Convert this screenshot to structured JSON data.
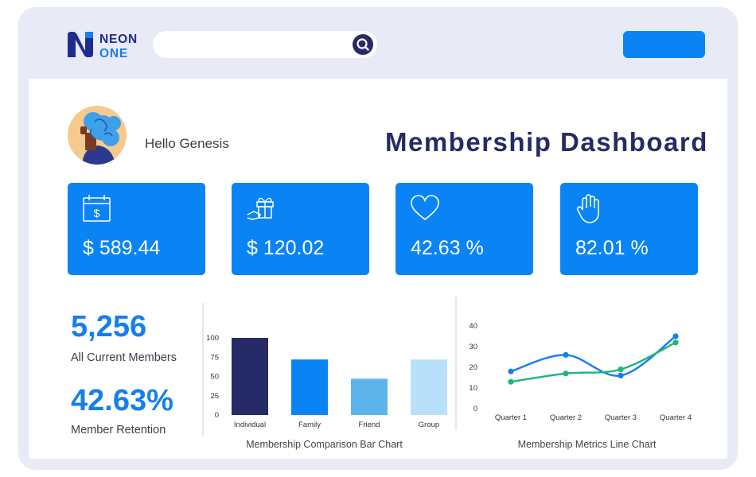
{
  "header": {
    "logo_line1": "NEON",
    "logo_line2": "ONE",
    "search_placeholder": "",
    "search_icon": "search-icon",
    "action_button_label": ""
  },
  "user": {
    "greeting": "Hello Genesis"
  },
  "page": {
    "title": "Membership Dashboard"
  },
  "cards": [
    {
      "icon": "calendar-dollar-icon",
      "value": "$ 589.44"
    },
    {
      "icon": "gift-hand-icon",
      "value": "$ 120.02"
    },
    {
      "icon": "heart-icon",
      "value": "42.63 %"
    },
    {
      "icon": "hand-icon",
      "value": "82.01 %"
    }
  ],
  "stats": {
    "members_value": "5,256",
    "members_label": "All Current Members",
    "retention_value": "42.63%",
    "retention_label": "Member Retention"
  },
  "colors": {
    "accent": "#0A84F5",
    "navy": "#262A66",
    "green": "#1DB57A",
    "frame": "#E8EAF6"
  },
  "chart_data": [
    {
      "type": "bar",
      "title": "Membership Comparison Bar Chart",
      "categories": [
        "Individual",
        "Family",
        "Friend",
        "Group"
      ],
      "values": [
        100,
        72,
        47,
        72
      ],
      "colors": [
        "#262A66",
        "#0A84F5",
        "#5DB4EB",
        "#B9E0FB"
      ],
      "yticks": [
        0,
        25,
        50,
        75,
        100
      ],
      "ylim": [
        0,
        100
      ]
    },
    {
      "type": "line",
      "title": "Membership Metrics Line Chart",
      "categories": [
        "Quarter 1",
        "Quarter 2",
        "Quarter 3",
        "Quarter 4"
      ],
      "series": [
        {
          "values": [
            18,
            26,
            16,
            35
          ],
          "color": "#1580EC"
        },
        {
          "values": [
            13,
            17,
            19,
            32
          ],
          "color": "#1DB57A"
        }
      ],
      "yticks": [
        0,
        10,
        20,
        30,
        40
      ],
      "ylim": [
        0,
        40
      ]
    }
  ]
}
